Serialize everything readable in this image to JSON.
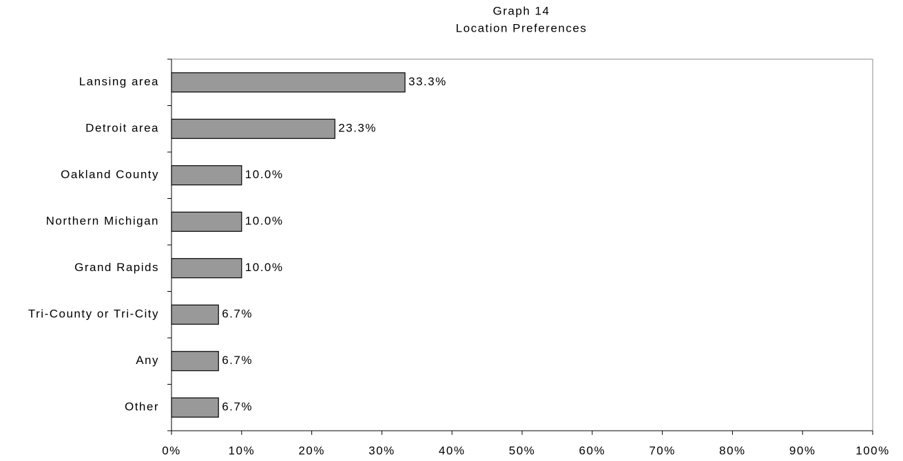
{
  "chart_data": {
    "type": "bar",
    "orientation": "horizontal",
    "title": "Graph 14",
    "subtitle": "Location Preferences",
    "categories": [
      "Lansing area",
      "Detroit area",
      "Oakland County",
      "Northern Michigan",
      "Grand Rapids",
      "Tri-County or Tri-City",
      "Any",
      "Other"
    ],
    "values": [
      33.3,
      23.3,
      10.0,
      10.0,
      10.0,
      6.7,
      6.7,
      6.7
    ],
    "value_labels": [
      "33.3%",
      "23.3%",
      "10.0%",
      "10.0%",
      "10.0%",
      "6.7%",
      "6.7%",
      "6.7%"
    ],
    "color": "#999999",
    "xlim": [
      0,
      100
    ],
    "xticks": [
      {
        "value": 0,
        "label": "0%"
      },
      {
        "value": 10,
        "label": "10%"
      },
      {
        "value": 20,
        "label": "20%"
      },
      {
        "value": 30,
        "label": "30%"
      },
      {
        "value": 40,
        "label": "40%"
      },
      {
        "value": 50,
        "label": "50%"
      },
      {
        "value": 60,
        "label": "60%"
      },
      {
        "value": 70,
        "label": "70%"
      },
      {
        "value": 80,
        "label": "80%"
      },
      {
        "value": 90,
        "label": "90%"
      },
      {
        "value": 100,
        "label": "100%"
      }
    ],
    "grid": false
  }
}
